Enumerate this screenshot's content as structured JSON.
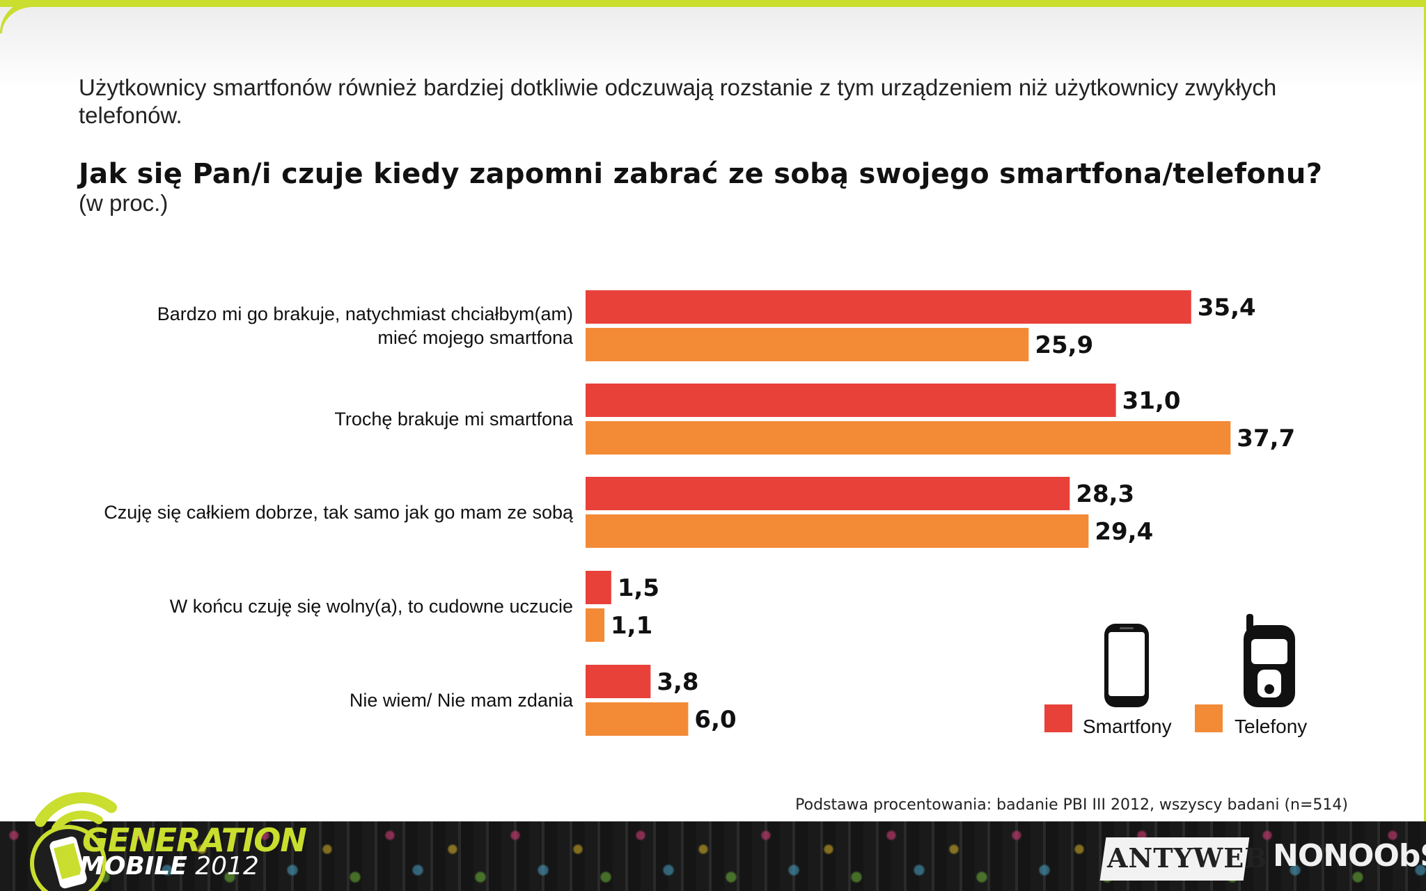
{
  "intro_text": "Użytkownicy smartfonów również bardziej dotkliwie odczuwają rozstanie z tym urządzeniem niż użytkownicy zwykłych telefonów.",
  "question": "Jak się Pan/i czuje kiedy zapomni zabrać ze sobą swojego smartfona/telefonu?",
  "unit_note": "(w proc.)",
  "colors": {
    "smartfony": "#e8413a",
    "telefony": "#f38a36",
    "accent": "#c9de2e"
  },
  "chart_data": {
    "type": "bar",
    "orientation": "horizontal",
    "categories": [
      [
        "Bardzo mi go brakuje, natychmiast chciałbym(am)",
        "mieć mojego smartfona"
      ],
      [
        "Trochę brakuje mi smartfona"
      ],
      [
        "Czuję się całkiem dobrze, tak samo jak go mam ze sobą"
      ],
      [
        "W końcu czuję się wolny(a), to cudowne uczucie"
      ],
      [
        "Nie wiem/ Nie mam zdania"
      ]
    ],
    "series": [
      {
        "name": "Smartfony",
        "values": [
          35.4,
          31.0,
          28.3,
          1.5,
          3.8
        ],
        "labels": [
          "35,4",
          "31,0",
          "28,3",
          "1,5",
          "3,8"
        ]
      },
      {
        "name": "Telefony",
        "values": [
          25.9,
          37.7,
          29.4,
          1.1,
          6.0
        ],
        "labels": [
          "25,9",
          "37,7",
          "29,4",
          "1,1",
          "6,0"
        ]
      }
    ],
    "xlim": [
      0,
      40
    ],
    "grid": false,
    "legend": "bottom-right"
  },
  "legend": {
    "smartfony_label": "Smartfony",
    "telefony_label": "Telefony",
    "smartfony_icon": "smartphone-icon",
    "telefony_icon": "flip-phone-icon"
  },
  "footnote": "Podstawa procentowania: badanie PBI III 2012, wszyscy badani (n=514)",
  "branding": {
    "logo_line1": "GENERATION",
    "logo_line2a": "MOBILE",
    "logo_line2b": "2012",
    "partner1": "ANTYWEB",
    "partner2": "NONOObS"
  }
}
